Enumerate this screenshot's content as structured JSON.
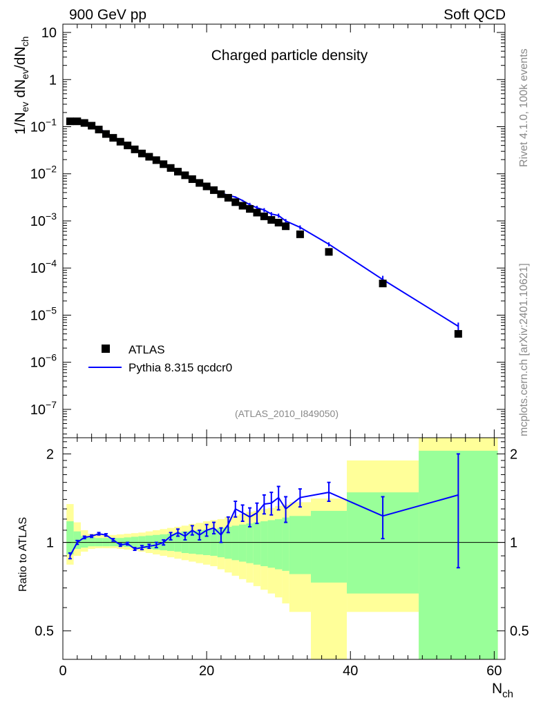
{
  "header": {
    "left_title": "900 GeV pp",
    "right_title": "Soft QCD",
    "side_rivet": "Rivet 4.1.0,  100k events",
    "side_mcplots": "mcplots.cern.ch [arXiv:2401.10621]"
  },
  "chart_data": [
    {
      "type": "scatter",
      "title": "Charged particle density",
      "analysis": "(ATLAS_2010_I849050)",
      "ylabel_main": "1/N",
      "ylabel_sub1": "ev",
      "ylabel_mid": " dN",
      "ylabel_sub2": "ev",
      "ylabel_mid2": "/dN",
      "ylabel_sub3": "ch",
      "yscale": "log",
      "xlim": [
        0,
        61.5
      ],
      "ylim": [
        2.5e-08,
        15
      ],
      "ytick_labels": [
        {
          "base": "10",
          "exp": "",
          "value": 10
        },
        {
          "base": "1",
          "exp": "",
          "value": 1
        },
        {
          "base": "10",
          "exp": "−1",
          "value": 0.1
        },
        {
          "base": "10",
          "exp": "−2",
          "value": 0.01
        },
        {
          "base": "10",
          "exp": "−3",
          "value": 0.001
        },
        {
          "base": "10",
          "exp": "−4",
          "value": 0.0001
        },
        {
          "base": "10",
          "exp": "−5",
          "value": 1e-05
        },
        {
          "base": "10",
          "exp": "−6",
          "value": 1e-06
        },
        {
          "base": "10",
          "exp": "−7",
          "value": 1e-07
        }
      ],
      "legend": {
        "position": "bottom-left",
        "entries": [
          "ATLAS",
          "Pythia 8.315 qcdcr0"
        ]
      },
      "series": [
        {
          "name": "ATLAS",
          "style": "black-squares",
          "x": [
            1,
            2,
            3,
            4,
            5,
            6,
            7,
            8,
            9,
            10,
            11,
            12,
            13,
            14,
            15,
            16,
            17,
            18,
            19,
            20,
            21,
            22,
            23,
            24,
            25,
            26,
            27,
            28,
            29,
            30,
            31,
            33,
            37,
            44.5,
            55
          ],
          "y": [
            0.13,
            0.13,
            0.12,
            0.105,
            0.087,
            0.07,
            0.058,
            0.048,
            0.04,
            0.033,
            0.027,
            0.023,
            0.0195,
            0.016,
            0.0133,
            0.0111,
            0.0093,
            0.0077,
            0.0064,
            0.0054,
            0.0045,
            0.0037,
            0.0031,
            0.0025,
            0.0021,
            0.0018,
            0.0015,
            0.00125,
            0.00105,
            0.00092,
            0.00077,
            0.00052,
            0.00022,
            4.7e-05,
            4e-06
          ]
        },
        {
          "name": "Pythia 8.315 qcdcr0",
          "style": "blue-line",
          "color": "#0000ff",
          "x": [
            1,
            2,
            3,
            4,
            5,
            6,
            7,
            8,
            9,
            10,
            11,
            12,
            13,
            14,
            15,
            16,
            17,
            18,
            19,
            20,
            21,
            22,
            23,
            24,
            25,
            26,
            27,
            28,
            29,
            30,
            31,
            33,
            37,
            44.5,
            55
          ],
          "y": [
            0.117,
            0.129,
            0.124,
            0.11,
            0.093,
            0.075,
            0.059,
            0.047,
            0.039,
            0.031,
            0.026,
            0.022,
            0.0185,
            0.0155,
            0.013,
            0.0112,
            0.0094,
            0.008,
            0.0065,
            0.0057,
            0.0049,
            0.0039,
            0.0035,
            0.0032,
            0.0027,
            0.0022,
            0.0019,
            0.0017,
            0.0014,
            0.0013,
            0.001,
            0.00073,
            0.00032,
            5.7e-05,
            5.8e-06
          ]
        }
      ]
    },
    {
      "type": "line",
      "ylabel": "Ratio to ATLAS",
      "xlabel": "N",
      "xlabel_sub": "ch",
      "xlim": [
        0,
        61.5
      ],
      "ylim": [
        0.4,
        2.27
      ],
      "x_tick_labels": [
        "0",
        "20",
        "40",
        "60"
      ],
      "y_tick_labels": [
        "0.5",
        "1",
        "2"
      ],
      "reference_line": 1,
      "uncertainty_bands": {
        "inner_color": "#99ff99",
        "outer_color": "#ffff99",
        "bins": [
          {
            "lo": 0.5,
            "hi": 1.5,
            "in_lo": 0.91,
            "in_hi": 1.18,
            "out_lo": 0.84,
            "out_hi": 1.35
          },
          {
            "lo": 1.5,
            "hi": 2.5,
            "in_lo": 0.95,
            "in_hi": 1.09,
            "out_lo": 0.9,
            "out_hi": 1.17
          },
          {
            "lo": 2.5,
            "hi": 3.5,
            "in_lo": 0.96,
            "in_hi": 1.05,
            "out_lo": 0.93,
            "out_hi": 1.1
          },
          {
            "lo": 3.5,
            "hi": 4.5,
            "in_lo": 0.97,
            "in_hi": 1.04,
            "out_lo": 0.95,
            "out_hi": 1.07
          },
          {
            "lo": 4.5,
            "hi": 5.5,
            "in_lo": 0.97,
            "in_hi": 1.035,
            "out_lo": 0.955,
            "out_hi": 1.06
          },
          {
            "lo": 5.5,
            "hi": 6.5,
            "in_lo": 0.97,
            "in_hi": 1.035,
            "out_lo": 0.955,
            "out_hi": 1.06
          },
          {
            "lo": 6.5,
            "hi": 7.5,
            "in_lo": 0.97,
            "in_hi": 1.035,
            "out_lo": 0.955,
            "out_hi": 1.06
          },
          {
            "lo": 7.5,
            "hi": 8.5,
            "in_lo": 0.97,
            "in_hi": 1.035,
            "out_lo": 0.95,
            "out_hi": 1.065
          },
          {
            "lo": 8.5,
            "hi": 9.5,
            "in_lo": 0.965,
            "in_hi": 1.04,
            "out_lo": 0.945,
            "out_hi": 1.07
          },
          {
            "lo": 9.5,
            "hi": 10.5,
            "in_lo": 0.96,
            "in_hi": 1.045,
            "out_lo": 0.94,
            "out_hi": 1.075
          },
          {
            "lo": 10.5,
            "hi": 11.5,
            "in_lo": 0.955,
            "in_hi": 1.05,
            "out_lo": 0.93,
            "out_hi": 1.08
          },
          {
            "lo": 11.5,
            "hi": 12.5,
            "in_lo": 0.95,
            "in_hi": 1.055,
            "out_lo": 0.92,
            "out_hi": 1.09
          },
          {
            "lo": 12.5,
            "hi": 13.5,
            "in_lo": 0.945,
            "in_hi": 1.06,
            "out_lo": 0.91,
            "out_hi": 1.1
          },
          {
            "lo": 13.5,
            "hi": 14.5,
            "in_lo": 0.94,
            "in_hi": 1.065,
            "out_lo": 0.9,
            "out_hi": 1.11
          },
          {
            "lo": 14.5,
            "hi": 15.5,
            "in_lo": 0.935,
            "in_hi": 1.07,
            "out_lo": 0.89,
            "out_hi": 1.12
          },
          {
            "lo": 15.5,
            "hi": 16.5,
            "in_lo": 0.93,
            "in_hi": 1.08,
            "out_lo": 0.88,
            "out_hi": 1.13
          },
          {
            "lo": 16.5,
            "hi": 17.5,
            "in_lo": 0.92,
            "in_hi": 1.09,
            "out_lo": 0.87,
            "out_hi": 1.14
          },
          {
            "lo": 17.5,
            "hi": 18.5,
            "in_lo": 0.915,
            "in_hi": 1.095,
            "out_lo": 0.86,
            "out_hi": 1.155
          },
          {
            "lo": 18.5,
            "hi": 19.5,
            "in_lo": 0.91,
            "in_hi": 1.1,
            "out_lo": 0.85,
            "out_hi": 1.165
          },
          {
            "lo": 19.5,
            "hi": 20.5,
            "in_lo": 0.905,
            "in_hi": 1.105,
            "out_lo": 0.84,
            "out_hi": 1.18
          },
          {
            "lo": 20.5,
            "hi": 21.5,
            "in_lo": 0.9,
            "in_hi": 1.11,
            "out_lo": 0.83,
            "out_hi": 1.19
          },
          {
            "lo": 21.5,
            "hi": 22.5,
            "in_lo": 0.89,
            "in_hi": 1.12,
            "out_lo": 0.81,
            "out_hi": 1.2
          },
          {
            "lo": 22.5,
            "hi": 23.5,
            "in_lo": 0.88,
            "in_hi": 1.13,
            "out_lo": 0.79,
            "out_hi": 1.22
          },
          {
            "lo": 23.5,
            "hi": 24.5,
            "in_lo": 0.87,
            "in_hi": 1.14,
            "out_lo": 0.77,
            "out_hi": 1.235
          },
          {
            "lo": 24.5,
            "hi": 25.5,
            "in_lo": 0.86,
            "in_hi": 1.15,
            "out_lo": 0.75,
            "out_hi": 1.25
          },
          {
            "lo": 25.5,
            "hi": 26.5,
            "in_lo": 0.85,
            "in_hi": 1.16,
            "out_lo": 0.73,
            "out_hi": 1.27
          },
          {
            "lo": 26.5,
            "hi": 27.5,
            "in_lo": 0.84,
            "in_hi": 1.17,
            "out_lo": 0.71,
            "out_hi": 1.28
          },
          {
            "lo": 27.5,
            "hi": 28.5,
            "in_lo": 0.83,
            "in_hi": 1.18,
            "out_lo": 0.69,
            "out_hi": 1.3
          },
          {
            "lo": 28.5,
            "hi": 29.5,
            "in_lo": 0.82,
            "in_hi": 1.19,
            "out_lo": 0.67,
            "out_hi": 1.31
          },
          {
            "lo": 29.5,
            "hi": 30.5,
            "in_lo": 0.81,
            "in_hi": 1.2,
            "out_lo": 0.65,
            "out_hi": 1.33
          },
          {
            "lo": 30.5,
            "hi": 31.5,
            "in_lo": 0.8,
            "in_hi": 1.215,
            "out_lo": 0.62,
            "out_hi": 1.345
          },
          {
            "lo": 31.5,
            "hi": 34.5,
            "in_lo": 0.78,
            "in_hi": 1.23,
            "out_lo": 0.58,
            "out_hi": 1.37
          },
          {
            "lo": 34.5,
            "hi": 39.5,
            "in_lo": 0.73,
            "in_hi": 1.28,
            "out_lo": 0.3,
            "out_hi": 1.41
          },
          {
            "lo": 39.5,
            "hi": 49.5,
            "in_lo": 0.67,
            "in_hi": 1.48,
            "out_lo": 0.58,
            "out_hi": 1.9
          },
          {
            "lo": 49.5,
            "hi": 60.5,
            "in_lo": 0.3,
            "in_hi": 2.05,
            "out_lo": 0.3,
            "out_hi": 2.4
          }
        ]
      },
      "series": [
        {
          "name": "Pythia 8.315 qcdcr0 / ATLAS",
          "color": "#0000ff",
          "x": [
            1,
            2,
            3,
            4,
            5,
            6,
            7,
            8,
            9,
            10,
            11,
            12,
            13,
            14,
            15,
            16,
            17,
            18,
            19,
            20,
            21,
            22,
            23,
            24,
            25,
            26,
            27,
            28,
            29,
            30,
            31,
            33,
            37,
            44.5,
            55
          ],
          "y": [
            0.9,
            1.0,
            1.04,
            1.05,
            1.07,
            1.06,
            1.02,
            0.98,
            0.99,
            0.95,
            0.96,
            0.97,
            0.98,
            1.0,
            1.05,
            1.08,
            1.05,
            1.1,
            1.06,
            1.1,
            1.12,
            1.06,
            1.15,
            1.3,
            1.26,
            1.22,
            1.26,
            1.35,
            1.36,
            1.42,
            1.3,
            1.42,
            1.48,
            1.23,
            1.45
          ],
          "err_lo": [
            0.02,
            0.015,
            0.01,
            0.01,
            0.01,
            0.01,
            0.01,
            0.01,
            0.01,
            0.01,
            0.015,
            0.015,
            0.02,
            0.02,
            0.03,
            0.03,
            0.03,
            0.04,
            0.04,
            0.05,
            0.05,
            0.06,
            0.07,
            0.08,
            0.08,
            0.09,
            0.1,
            0.1,
            0.12,
            0.13,
            0.13,
            0.1,
            0.1,
            0.2,
            0.63
          ],
          "err_hi": [
            0.02,
            0.015,
            0.01,
            0.01,
            0.01,
            0.01,
            0.01,
            0.01,
            0.01,
            0.01,
            0.015,
            0.015,
            0.02,
            0.02,
            0.03,
            0.03,
            0.03,
            0.04,
            0.04,
            0.05,
            0.05,
            0.06,
            0.07,
            0.08,
            0.08,
            0.09,
            0.1,
            0.1,
            0.12,
            0.13,
            0.13,
            0.1,
            0.12,
            0.2,
            0.55
          ]
        }
      ]
    }
  ]
}
